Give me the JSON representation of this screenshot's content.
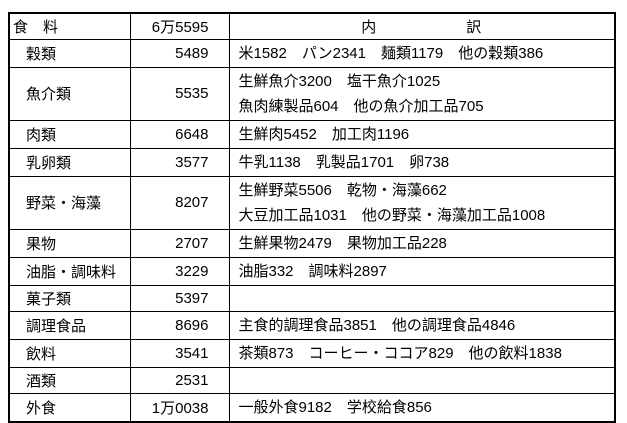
{
  "table": {
    "header": {
      "category": "食　料",
      "amount": "6万5595",
      "breakdown_label": "内　　　　　　訳"
    },
    "rows": [
      {
        "category": "穀類",
        "amount": "5489",
        "breakdown": [
          "米1582　パン2341　麺類1179　他の穀類386"
        ]
      },
      {
        "category": "魚介類",
        "amount": "5535",
        "breakdown": [
          "生鮮魚介3200　塩干魚介1025",
          "魚肉練製品604　他の魚介加工品705"
        ]
      },
      {
        "category": "肉類",
        "amount": "6648",
        "breakdown": [
          "生鮮肉5452　加工肉1196"
        ]
      },
      {
        "category": "乳卵類",
        "amount": "3577",
        "breakdown": [
          "牛乳1138　乳製品1701　卵738"
        ]
      },
      {
        "category": "野菜・海藻",
        "amount": "8207",
        "breakdown": [
          "生鮮野菜5506　乾物・海藻662",
          "大豆加工品1031　他の野菜・海藻加工品1008"
        ]
      },
      {
        "category": "果物",
        "amount": "2707",
        "breakdown": [
          "生鮮果物2479　果物加工品228"
        ]
      },
      {
        "category": "油脂・調味料",
        "amount": "3229",
        "breakdown": [
          "油脂332　調味料2897"
        ]
      },
      {
        "category": "菓子類",
        "amount": "5397",
        "breakdown": []
      },
      {
        "category": "調理食品",
        "amount": "8696",
        "breakdown": [
          "主食的調理食品3851　他の調理食品4846"
        ]
      },
      {
        "category": "飲料",
        "amount": "3541",
        "breakdown": [
          "茶類873　コーヒー・ココア829　他の飲料1838"
        ]
      },
      {
        "category": "酒類",
        "amount": "2531",
        "breakdown": []
      },
      {
        "category": "外食",
        "amount": "1万0038",
        "breakdown": [
          "一般外食9182　学校給食856"
        ]
      }
    ],
    "border_color": "#000000"
  }
}
